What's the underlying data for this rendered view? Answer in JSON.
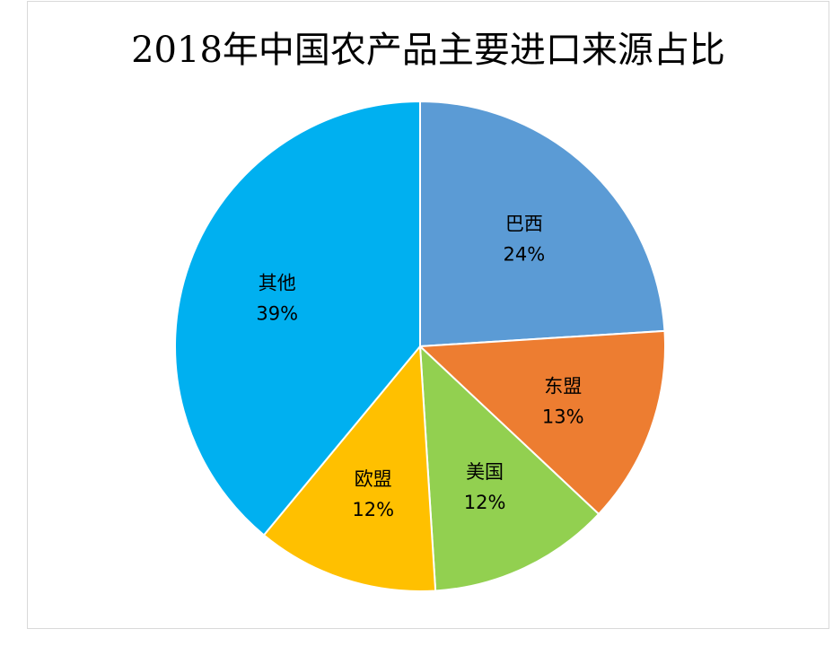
{
  "chart_data": {
    "type": "pie",
    "title": "2018年中国农产品主要进口来源占比",
    "categories": [
      "巴西",
      "东盟",
      "美国",
      "欧盟",
      "其他"
    ],
    "values": [
      24,
      13,
      12,
      12,
      39
    ],
    "value_labels": [
      "24%",
      "13%",
      "12%",
      "12%",
      "39%"
    ],
    "colors": [
      "#5b9bd5",
      "#ed7d31",
      "#92d050",
      "#ffc000",
      "#00b0f0"
    ],
    "start_angle_deg": 0,
    "direction": "clockwise",
    "legend": "none",
    "labels_inside": true
  }
}
